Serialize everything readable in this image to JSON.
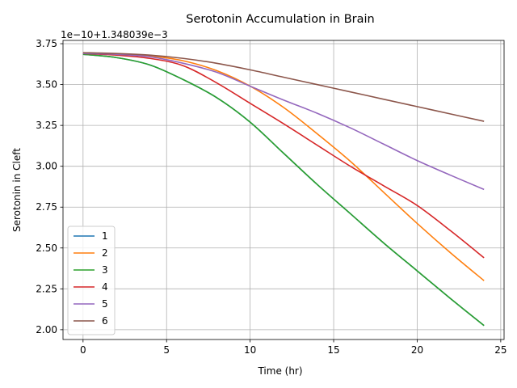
{
  "chart_data": {
    "type": "line",
    "title": "Serotonin Accumulation in Brain",
    "xlabel": "Time (hr)",
    "ylabel": "Serotonin in Cleft",
    "y_offset_text": "1e−10+1.348039e−3",
    "xlim": [
      -1.2,
      25.2
    ],
    "ylim": [
      1.94,
      3.77
    ],
    "xticks": [
      0,
      5,
      10,
      15,
      20,
      25
    ],
    "xtick_labels": [
      "0",
      "5",
      "10",
      "15",
      "20",
      "25"
    ],
    "yticks": [
      2.0,
      2.25,
      2.5,
      2.75,
      3.0,
      3.25,
      3.5,
      3.75
    ],
    "ytick_labels": [
      "2.00",
      "2.25",
      "2.50",
      "2.75",
      "3.00",
      "3.25",
      "3.50",
      "3.75"
    ],
    "grid": true,
    "legend_position": "lower-left",
    "x": [
      0,
      2,
      4,
      6,
      8,
      10,
      12,
      14,
      16,
      18,
      20,
      22,
      24
    ],
    "series": [
      {
        "name": "1",
        "color": "#1f77b4",
        "values": [
          3.685,
          3.665,
          3.62,
          3.53,
          3.42,
          3.27,
          3.08,
          2.89,
          2.71,
          2.53,
          2.36,
          2.19,
          2.025
        ]
      },
      {
        "name": "2",
        "color": "#ff7f0e",
        "values": [
          3.69,
          3.685,
          3.675,
          3.645,
          3.585,
          3.49,
          3.36,
          3.2,
          3.03,
          2.84,
          2.65,
          2.47,
          2.3
        ]
      },
      {
        "name": "3",
        "color": "#2ca02c",
        "values": [
          3.685,
          3.665,
          3.62,
          3.53,
          3.42,
          3.27,
          3.08,
          2.89,
          2.71,
          2.53,
          2.36,
          2.19,
          2.025
        ]
      },
      {
        "name": "4",
        "color": "#d62728",
        "values": [
          3.69,
          3.68,
          3.66,
          3.615,
          3.51,
          3.385,
          3.26,
          3.13,
          3.0,
          2.88,
          2.76,
          2.605,
          2.44
        ]
      },
      {
        "name": "5",
        "color": "#9467bd",
        "values": [
          3.69,
          3.685,
          3.67,
          3.63,
          3.575,
          3.49,
          3.405,
          3.325,
          3.235,
          3.135,
          3.035,
          2.945,
          2.858
        ]
      },
      {
        "name": "6",
        "color": "#8c564b",
        "values": [
          3.695,
          3.69,
          3.68,
          3.66,
          3.63,
          3.59,
          3.545,
          3.5,
          3.455,
          3.41,
          3.365,
          3.32,
          3.275
        ]
      }
    ]
  }
}
